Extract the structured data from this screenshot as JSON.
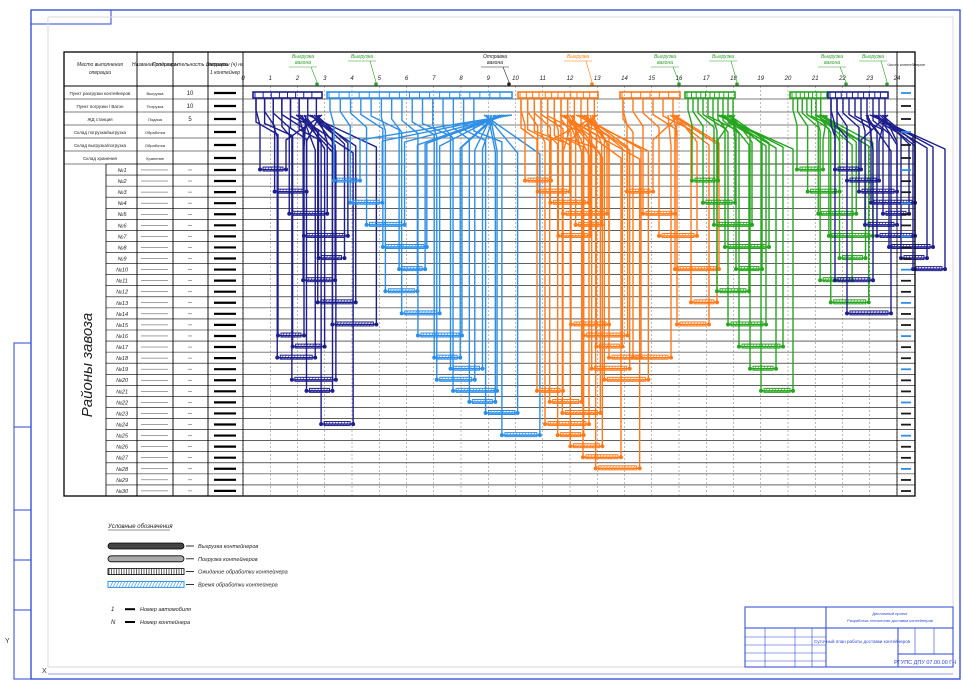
{
  "header_cells": [
    {
      "key": "h1",
      "text": "Место выполнения операции"
    },
    {
      "key": "h2",
      "text": "Название операции"
    },
    {
      "key": "h3",
      "text": "Продолжи-тельность операции"
    },
    {
      "key": "h4",
      "text": "Затраты (ч) на 1 контейнер"
    }
  ],
  "top_rows": [
    {
      "place": "Пункт разгрузки контейнеров",
      "op": "Выгрузка",
      "dur": "10"
    },
    {
      "place": "Пункт погрузки / Вагон",
      "op": "Погрузка",
      "dur": "10"
    },
    {
      "place": "ЖД станция",
      "op": "Подача",
      "dur": "5"
    },
    {
      "place": "Склад погрузка/выгрузка",
      "op": "Обработка",
      "dur": ""
    },
    {
      "place": "Склад выгрузка/погрузка",
      "op": "Обработка",
      "dur": ""
    },
    {
      "place": "Склад хранения",
      "op": "Хранение",
      "dur": ""
    }
  ],
  "district_label": "Районы завоза",
  "districts": [
    "№1",
    "№2",
    "№3",
    "№4",
    "№5",
    "№6",
    "№7",
    "№8",
    "№9",
    "№10",
    "№11",
    "№12",
    "№13",
    "№14",
    "№15",
    "№16",
    "№17",
    "№18",
    "№19",
    "№20",
    "№21",
    "№22",
    "№23",
    "№24",
    "№25",
    "№26",
    "№27",
    "№28",
    "№29",
    "№30"
  ],
  "timeline_ticks": [
    "0",
    "1",
    "2",
    "3",
    "4",
    "5",
    "6",
    "7",
    "8",
    "9",
    "10",
    "11",
    "12",
    "13",
    "14",
    "15",
    "16",
    "17",
    "18",
    "19",
    "20",
    "21",
    "22",
    "23",
    "24"
  ],
  "top_callouts": [
    {
      "text": "Выгрузка вагона",
      "color": "#2ca02c"
    },
    {
      "text": "Выгрузка",
      "color": "#2ca02c"
    },
    {
      "text": "Отправка вагона",
      "color": "#222222"
    },
    {
      "text": "Выгрузка",
      "color": "#ff7f0e"
    },
    {
      "text": "Выгрузка вагона",
      "color": "#2ca02c"
    },
    {
      "text": "Выгрузка",
      "color": "#2ca02c"
    },
    {
      "text": "Выгрузка вагона",
      "color": "#2ca02c"
    },
    {
      "text": "Выгрузка",
      "color": "#2ca02c"
    }
  ],
  "right_column_header": "Число контейнеров",
  "legend": {
    "title": "Условные обозначения",
    "items": [
      {
        "style": "dark",
        "label": "Выгрузка контейнеров"
      },
      {
        "style": "light",
        "label": "Погрузка контейнеров"
      },
      {
        "style": "hatch",
        "label": "Ожидание обработки контейнера"
      },
      {
        "style": "stripe",
        "label": "Время обработки контейнера"
      },
      {
        "style": "num1",
        "label": "Номер автомобиля",
        "sym": "1"
      },
      {
        "style": "num2",
        "label": "Номер контейнера",
        "sym": "N"
      }
    ]
  },
  "title_block": {
    "university": "Дипломный проект",
    "topic": "Разработка технологии доставки контейнеров",
    "drawing_title": "Суточный план работы доставки контейнеров",
    "doc_code": "РГУПС ДПУ 07.00.00 ГЧ"
  },
  "colors": {
    "frame": "#2a46d6",
    "grid": "#000000",
    "navy": "#1e1e8c",
    "light_blue": "#2e8fe8",
    "orange": "#ff7a1a",
    "green": "#27a61f"
  }
}
